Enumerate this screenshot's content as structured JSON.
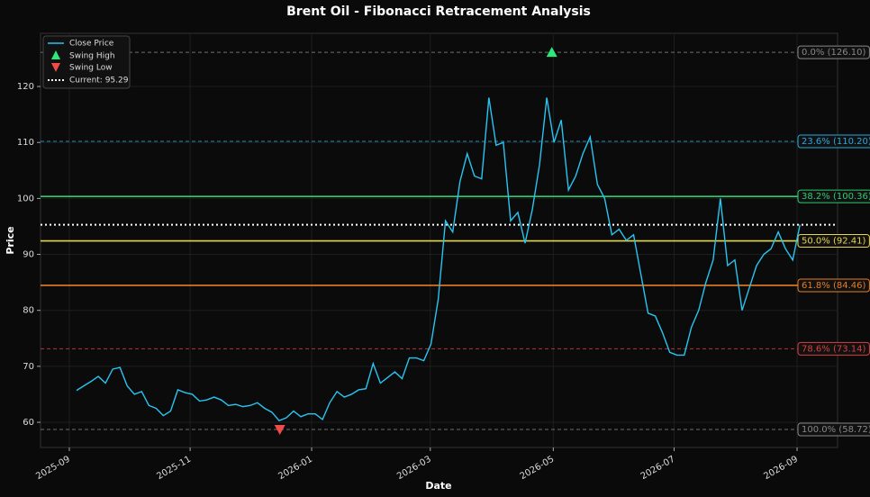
{
  "chart_data": {
    "type": "line",
    "title": "Brent Oil - Fibonacci Retracement Analysis",
    "x_label": "Date",
    "y_label": "Price",
    "xlim": [
      -4.98,
      105.2
    ],
    "xticks": [
      {
        "value": -1.0,
        "label": "2025-09"
      },
      {
        "value": 15.7,
        "label": "2025-11"
      },
      {
        "value": 32.5,
        "label": "2026-01"
      },
      {
        "value": 48.9,
        "label": "2026-03"
      },
      {
        "value": 65.9,
        "label": "2026-05"
      },
      {
        "value": 82.6,
        "label": "2026-07"
      },
      {
        "value": 99.6,
        "label": "2026-09"
      }
    ],
    "ylim": [
      55.5,
      129.5
    ],
    "yticks": [
      60,
      70,
      80,
      90,
      100,
      110,
      120
    ],
    "grid": true,
    "legend": "upper left",
    "series": [
      {
        "name": "Close Price",
        "color": "#29c4f0",
        "values": [
          65.7,
          66.5,
          67.3,
          68.2,
          67.0,
          69.5,
          69.8,
          66.5,
          65.0,
          65.5,
          63.0,
          62.5,
          61.2,
          62.0,
          65.8,
          65.3,
          65.0,
          63.8,
          64.0,
          64.5,
          64.0,
          63.0,
          63.2,
          62.8,
          63.0,
          63.5,
          62.5,
          61.8,
          60.3,
          60.8,
          62.0,
          61.0,
          61.5,
          61.5,
          60.5,
          63.5,
          65.5,
          64.5,
          65.0,
          65.8,
          66.0,
          70.5,
          67.0,
          68.0,
          69.0,
          67.8,
          71.5,
          71.5,
          71.0,
          74.0,
          82.0,
          96.0,
          94.0,
          103.0,
          108.0,
          104.0,
          103.5,
          118.0,
          109.5,
          110.0,
          96.0,
          97.5,
          92.0,
          98.0,
          106.0,
          118.0,
          110.0,
          114.0,
          101.5,
          104.0,
          108.0,
          111.0,
          102.5,
          100.0,
          93.5,
          94.5,
          92.5,
          93.5,
          86.5,
          79.5,
          79.0,
          76.0,
          72.5,
          72.0,
          72.0,
          77.0,
          80.0,
          85.0,
          89.0,
          100.0,
          88.0,
          89.0,
          80.0,
          84.0,
          88.0,
          90.0,
          91.0,
          94.0,
          91.0,
          89.0,
          95.29
        ]
      }
    ],
    "swing_high": {
      "name": "Swing High",
      "x": 65.7,
      "y": 126.1,
      "color": "#2ee87a"
    },
    "swing_low": {
      "name": "Swing Low",
      "x": 28.1,
      "y": 58.72,
      "color": "#ef4b4b"
    },
    "current": {
      "label": "Current: 95.29",
      "value": 95.29,
      "color": "#ffffff"
    },
    "fib_levels": [
      {
        "label": "0.0% (126.10)",
        "value": 126.1,
        "color": "#888888",
        "dashed": true
      },
      {
        "label": "23.6% (110.20)",
        "value": 110.2,
        "color": "#29a8e0",
        "dashed": true
      },
      {
        "label": "38.2% (100.36)",
        "value": 100.36,
        "color": "#2ecc71",
        "dashed": false
      },
      {
        "label": "50.0% (92.41)",
        "value": 92.41,
        "color": "#e8d64a",
        "dashed": false
      },
      {
        "label": "61.8% (84.46)",
        "value": 84.46,
        "color": "#e67e22",
        "dashed": false
      },
      {
        "label": "78.6% (73.14)",
        "value": 73.14,
        "color": "#d94040",
        "dashed": true
      },
      {
        "label": "100.0% (58.72)",
        "value": 58.72,
        "color": "#888888",
        "dashed": true
      }
    ]
  }
}
